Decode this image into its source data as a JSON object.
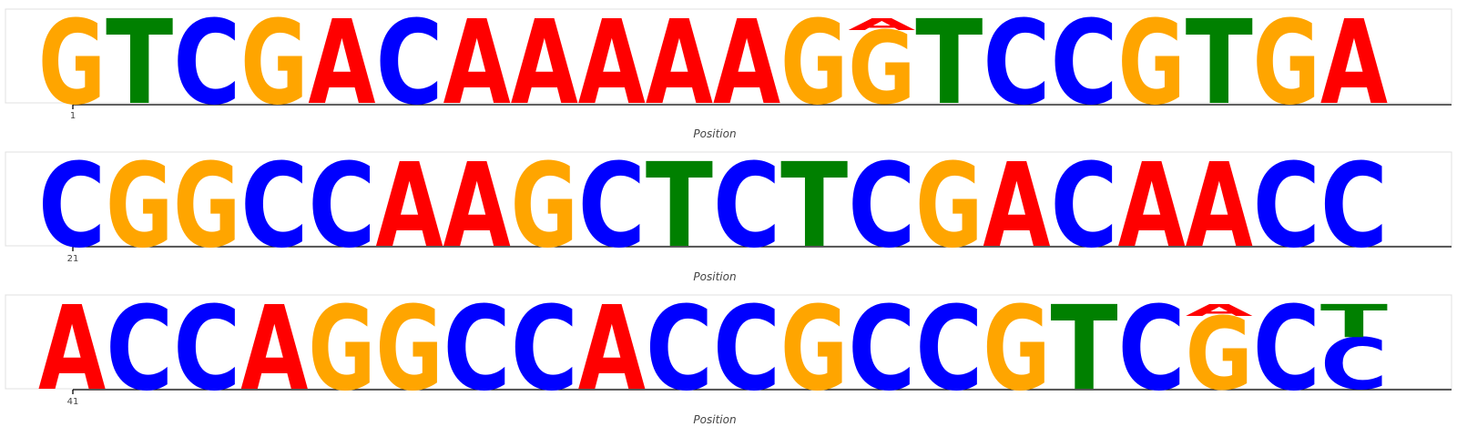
{
  "chart_data": {
    "type": "sequence-logo",
    "xlabel": "Position",
    "colors": {
      "A": "#ff0000",
      "C": "#0000ff",
      "G": "#ffa500",
      "T": "#008000"
    },
    "rows": [
      {
        "start": 1,
        "first_tick_label": "1",
        "positions": [
          [
            [
              "G",
              1
            ]
          ],
          [
            [
              "T",
              1
            ]
          ],
          [
            [
              "C",
              1
            ]
          ],
          [
            [
              "G",
              1
            ]
          ],
          [
            [
              "A",
              1
            ]
          ],
          [
            [
              "C",
              1
            ]
          ],
          [
            [
              "A",
              1
            ]
          ],
          [
            [
              "A",
              1
            ]
          ],
          [
            [
              "A",
              1
            ]
          ],
          [
            [
              "A",
              1
            ]
          ],
          [
            [
              "A",
              1
            ]
          ],
          [
            [
              "G",
              1
            ]
          ],
          [
            [
              "G",
              0.86
            ],
            [
              "A",
              0.14
            ]
          ],
          [
            [
              "T",
              1
            ]
          ],
          [
            [
              "C",
              1
            ]
          ],
          [
            [
              "C",
              1
            ]
          ],
          [
            [
              "G",
              1
            ]
          ],
          [
            [
              "T",
              1
            ]
          ],
          [
            [
              "G",
              1
            ]
          ],
          [
            [
              "A",
              1
            ]
          ]
        ]
      },
      {
        "start": 21,
        "first_tick_label": "21",
        "positions": [
          [
            [
              "C",
              1
            ]
          ],
          [
            [
              "G",
              1
            ]
          ],
          [
            [
              "G",
              1
            ]
          ],
          [
            [
              "C",
              1
            ]
          ],
          [
            [
              "C",
              1
            ]
          ],
          [
            [
              "A",
              1
            ]
          ],
          [
            [
              "A",
              1
            ]
          ],
          [
            [
              "G",
              1
            ]
          ],
          [
            [
              "C",
              1
            ]
          ],
          [
            [
              "T",
              1
            ]
          ],
          [
            [
              "C",
              1
            ]
          ],
          [
            [
              "T",
              1
            ]
          ],
          [
            [
              "C",
              1
            ]
          ],
          [
            [
              "G",
              1
            ]
          ],
          [
            [
              "A",
              1
            ]
          ],
          [
            [
              "C",
              1
            ]
          ],
          [
            [
              "A",
              1
            ]
          ],
          [
            [
              "A",
              1
            ]
          ],
          [
            [
              "C",
              1
            ]
          ],
          [
            [
              "C",
              1
            ]
          ]
        ]
      },
      {
        "start": 41,
        "first_tick_label": "41",
        "positions": [
          [
            [
              "A",
              1
            ]
          ],
          [
            [
              "C",
              1
            ]
          ],
          [
            [
              "C",
              1
            ]
          ],
          [
            [
              "A",
              1
            ]
          ],
          [
            [
              "G",
              1
            ]
          ],
          [
            [
              "G",
              1
            ]
          ],
          [
            [
              "C",
              1
            ]
          ],
          [
            [
              "C",
              1
            ]
          ],
          [
            [
              "A",
              1
            ]
          ],
          [
            [
              "C",
              1
            ]
          ],
          [
            [
              "C",
              1
            ]
          ],
          [
            [
              "G",
              1
            ]
          ],
          [
            [
              "C",
              1
            ]
          ],
          [
            [
              "C",
              1
            ]
          ],
          [
            [
              "G",
              1
            ]
          ],
          [
            [
              "T",
              1
            ]
          ],
          [
            [
              "C",
              1
            ]
          ],
          [
            [
              "G",
              0.86
            ],
            [
              "A",
              0.14
            ]
          ],
          [
            [
              "C",
              1
            ]
          ],
          [
            [
              "C",
              0.61
            ],
            [
              "T",
              0.39
            ]
          ]
        ]
      }
    ]
  }
}
